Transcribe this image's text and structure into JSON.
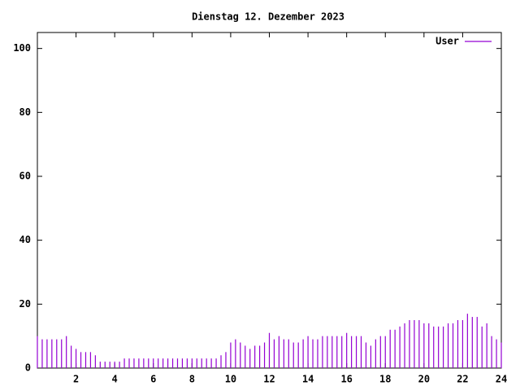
{
  "chart_data": {
    "type": "impulse",
    "title": "Dienstag 12. Dezember 2023",
    "series": [
      {
        "name": "User",
        "color": "#9400d3",
        "x": [
          0,
          0.25,
          0.5,
          0.75,
          1,
          1.25,
          1.5,
          1.75,
          2,
          2.25,
          2.5,
          2.75,
          3,
          3.25,
          3.5,
          3.75,
          4,
          4.25,
          4.5,
          4.75,
          5,
          5.25,
          5.5,
          5.75,
          6,
          6.25,
          6.5,
          6.75,
          7,
          7.25,
          7.5,
          7.75,
          8,
          8.25,
          8.5,
          8.75,
          9,
          9.25,
          9.5,
          9.75,
          10,
          10.25,
          10.5,
          10.75,
          11,
          11.25,
          11.5,
          11.75,
          12,
          12.25,
          12.5,
          12.75,
          13,
          13.25,
          13.5,
          13.75,
          14,
          14.25,
          14.5,
          14.75,
          15,
          15.25,
          15.5,
          15.75,
          16,
          16.25,
          16.5,
          16.75,
          17,
          17.25,
          17.5,
          17.75,
          18,
          18.25,
          18.5,
          18.75,
          19,
          19.25,
          19.5,
          19.75,
          20,
          20.25,
          20.5,
          20.75,
          21,
          21.25,
          21.5,
          21.75,
          22,
          22.25,
          22.5,
          22.75,
          23,
          23.25,
          23.5,
          23.75,
          24
        ],
        "values": [
          10,
          9,
          9,
          9,
          9,
          9,
          10,
          7,
          6,
          5,
          5,
          5,
          4,
          2,
          2,
          2,
          2,
          2,
          3,
          3,
          3,
          3,
          3,
          3,
          3,
          3,
          3,
          3,
          3,
          3,
          3,
          3,
          3,
          3,
          3,
          3,
          3,
          3,
          4,
          5,
          8,
          9,
          8,
          7,
          6,
          7,
          7,
          8,
          11,
          9,
          10,
          9,
          9,
          8,
          8,
          9,
          10,
          9,
          9,
          10,
          10,
          10,
          10,
          10,
          11,
          10,
          10,
          10,
          8,
          7,
          9,
          10,
          10,
          12,
          12,
          13,
          14,
          15,
          15,
          15,
          14,
          14,
          13,
          13,
          13,
          14,
          14,
          15,
          15,
          17,
          16,
          16,
          13,
          14,
          10,
          9,
          8
        ]
      }
    ],
    "xlim": [
      0,
      24
    ],
    "xticks": [
      2,
      4,
      6,
      8,
      10,
      12,
      14,
      16,
      18,
      20,
      22,
      24
    ],
    "ylim": [
      0,
      105
    ],
    "yticks": [
      0,
      20,
      40,
      60,
      80,
      100
    ],
    "legend": "top-right"
  }
}
